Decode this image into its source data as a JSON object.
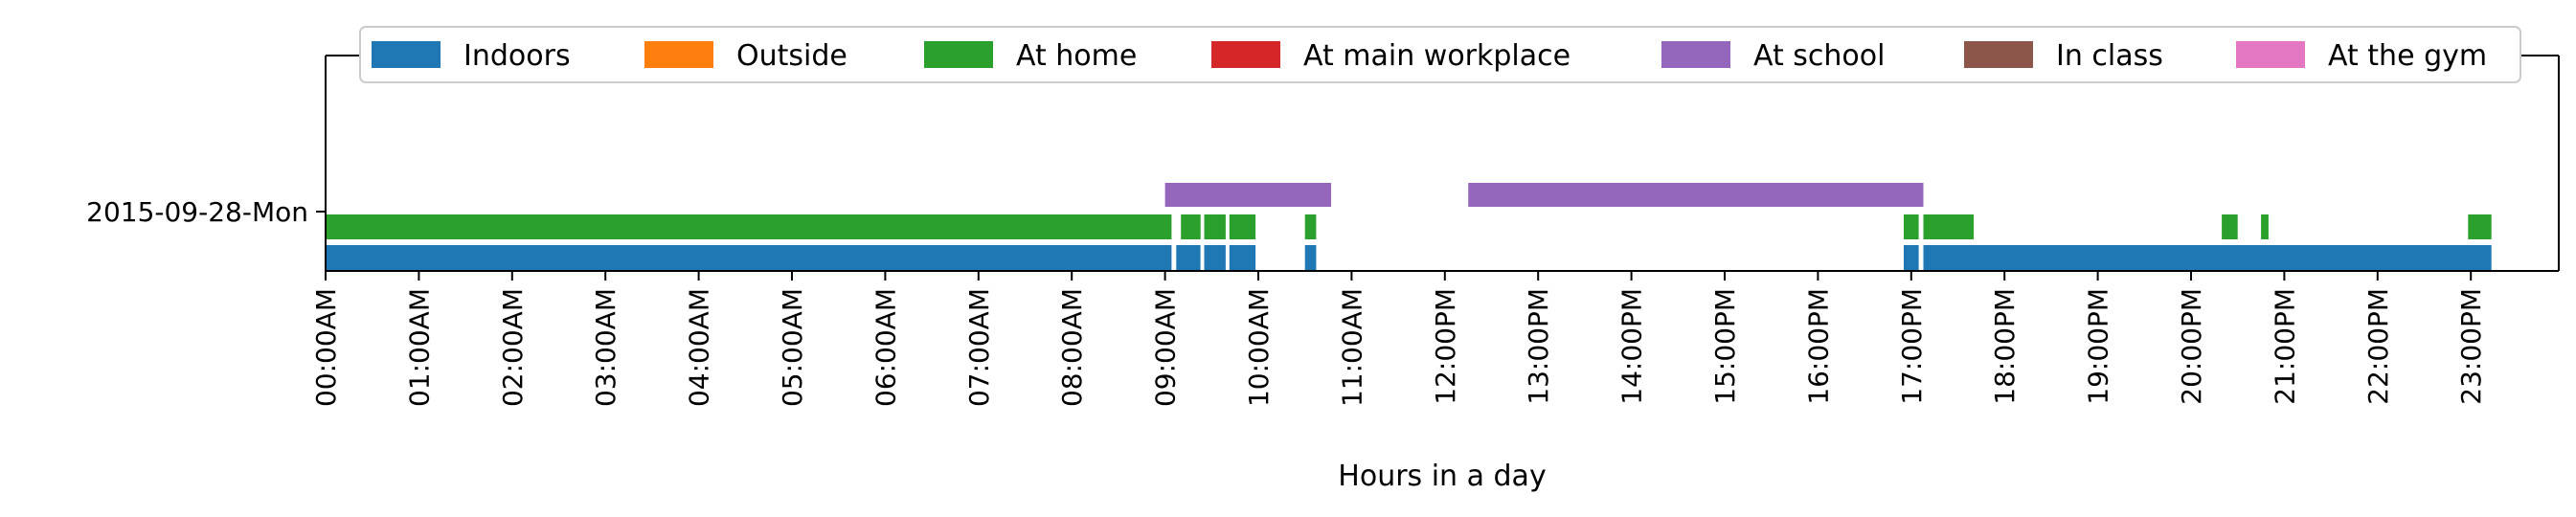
{
  "chart_data": {
    "type": "bar",
    "orientation": "horizontal-timeline",
    "title": "",
    "xlabel": "Hours in a day",
    "ylabel": "",
    "x_unit": "hours",
    "xlim": [
      0,
      24
    ],
    "x_ticks": [
      {
        "value": 0,
        "label": "00:00AM"
      },
      {
        "value": 1,
        "label": "01:00AM"
      },
      {
        "value": 2,
        "label": "02:00AM"
      },
      {
        "value": 3,
        "label": "03:00AM"
      },
      {
        "value": 4,
        "label": "04:00AM"
      },
      {
        "value": 5,
        "label": "05:00AM"
      },
      {
        "value": 6,
        "label": "06:00AM"
      },
      {
        "value": 7,
        "label": "07:00AM"
      },
      {
        "value": 8,
        "label": "08:00AM"
      },
      {
        "value": 9,
        "label": "09:00AM"
      },
      {
        "value": 10,
        "label": "10:00AM"
      },
      {
        "value": 11,
        "label": "11:00AM"
      },
      {
        "value": 12,
        "label": "12:00PM"
      },
      {
        "value": 13,
        "label": "13:00PM"
      },
      {
        "value": 14,
        "label": "14:00PM"
      },
      {
        "value": 15,
        "label": "15:00PM"
      },
      {
        "value": 16,
        "label": "16:00PM"
      },
      {
        "value": 17,
        "label": "17:00PM"
      },
      {
        "value": 18,
        "label": "18:00PM"
      },
      {
        "value": 19,
        "label": "19:00PM"
      },
      {
        "value": 20,
        "label": "20:00PM"
      },
      {
        "value": 21,
        "label": "21:00PM"
      },
      {
        "value": 22,
        "label": "22:00PM"
      },
      {
        "value": 23,
        "label": "23:00PM"
      }
    ],
    "y_categories": [
      "2015-09-28-Mon"
    ],
    "grid": false,
    "legend_placement": "top",
    "legend": [
      {
        "name": "Indoors",
        "color": "#1f77b4"
      },
      {
        "name": "Outside",
        "color": "#ff7f0e"
      },
      {
        "name": "At home",
        "color": "#2ca02c"
      },
      {
        "name": "At main workplace",
        "color": "#d62728"
      },
      {
        "name": "At school",
        "color": "#9467bd"
      },
      {
        "name": "In class",
        "color": "#8c564b"
      },
      {
        "name": "At the gym",
        "color": "#e377c2"
      }
    ],
    "series": [
      {
        "name": "Indoors",
        "color": "#1f77b4",
        "lane": 0,
        "intervals": [
          [
            0,
            9.07
          ],
          [
            9.12,
            9.38
          ],
          [
            9.42,
            9.65
          ],
          [
            9.69,
            9.97
          ],
          [
            10.5,
            10.62
          ],
          [
            16.92,
            17.08
          ],
          [
            17.13,
            23.22
          ]
        ]
      },
      {
        "name": "At home",
        "color": "#2ca02c",
        "lane": 1,
        "intervals": [
          [
            0,
            9.07
          ],
          [
            9.17,
            9.38
          ],
          [
            9.42,
            9.65
          ],
          [
            9.69,
            9.97
          ],
          [
            10.5,
            10.62
          ],
          [
            16.92,
            17.08
          ],
          [
            17.13,
            17.67
          ],
          [
            20.33,
            20.5
          ],
          [
            20.75,
            20.83
          ],
          [
            22.97,
            23.22
          ]
        ]
      },
      {
        "name": "At school",
        "color": "#9467bd",
        "lane": 2,
        "intervals": [
          [
            9.0,
            10.78
          ],
          [
            12.25,
            17.13
          ]
        ]
      }
    ]
  }
}
